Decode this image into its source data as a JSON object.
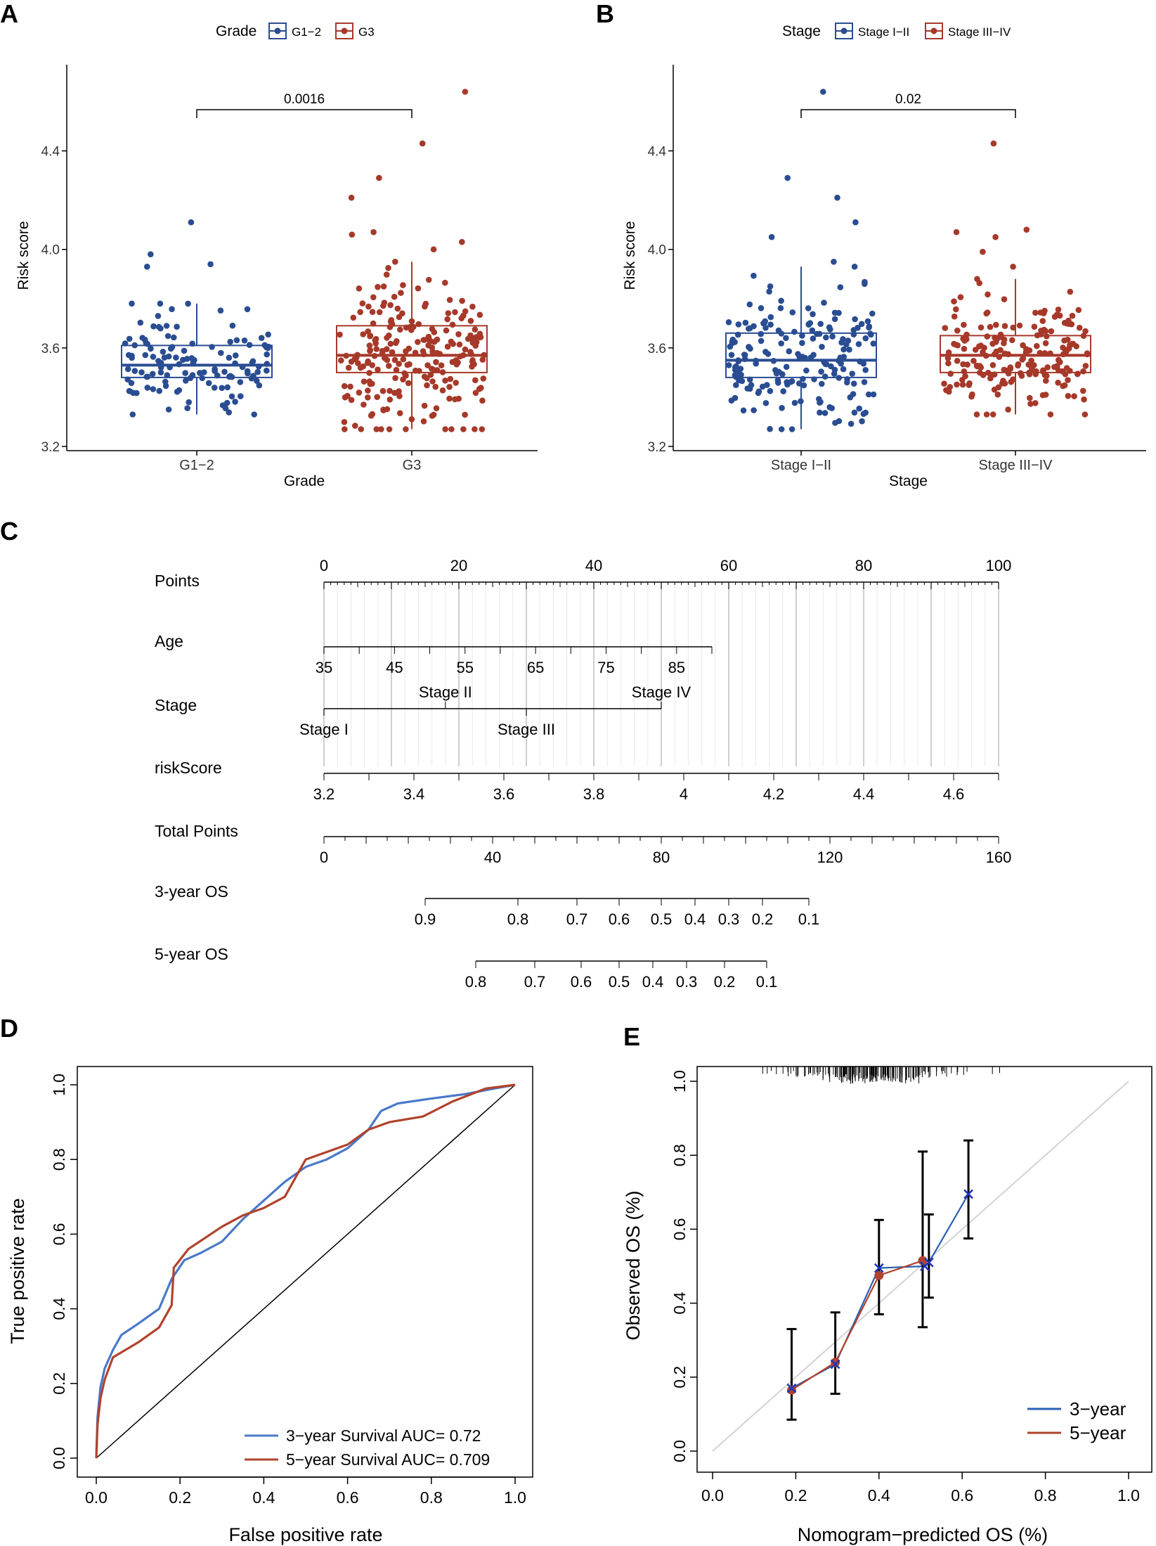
{
  "colors": {
    "blue": "#2a4d92",
    "red": "#a6392a",
    "ink": "#000000",
    "grid": "#cccccc",
    "roc_blue": "#4a79c8",
    "roc_red": "#b0432c"
  },
  "panels": {
    "A": "A",
    "B": "B",
    "C": "C",
    "D": "D",
    "E": "E"
  },
  "chart_data": [
    {
      "id": "A",
      "type": "box",
      "legend_title": "Grade",
      "legend": [
        "G1−2",
        "G3"
      ],
      "categories": [
        "G1−2",
        "G3"
      ],
      "xlabel": "Grade",
      "ylabel": "Risk score",
      "ylim": [
        3.2,
        4.75
      ],
      "yticks": [
        3.2,
        3.6,
        4.0,
        4.4
      ],
      "pvalue": "0.0016",
      "boxes": [
        {
          "q1": 3.48,
          "median": 3.53,
          "q3": 3.61,
          "whisker_low": 3.33,
          "whisker_high": 3.78,
          "n": 130
        },
        {
          "q1": 3.5,
          "median": 3.57,
          "q3": 3.69,
          "whisker_low": 3.27,
          "whisker_high": 3.95,
          "n": 230
        }
      ],
      "outliers": [
        {
          "group": 0,
          "y": 4.11
        },
        {
          "group": 0,
          "y": 3.98
        },
        {
          "group": 0,
          "y": 3.94
        },
        {
          "group": 0,
          "y": 3.93
        },
        {
          "group": 1,
          "y": 4.64
        },
        {
          "group": 1,
          "y": 4.43
        },
        {
          "group": 1,
          "y": 4.29
        },
        {
          "group": 1,
          "y": 4.21
        },
        {
          "group": 1,
          "y": 4.07
        },
        {
          "group": 1,
          "y": 4.06
        },
        {
          "group": 1,
          "y": 4.03
        },
        {
          "group": 1,
          "y": 4.0
        }
      ]
    },
    {
      "id": "B",
      "type": "box",
      "legend_title": "Stage",
      "legend": [
        "Stage I−II",
        "Stage III−IV"
      ],
      "categories": [
        "Stage I−II",
        "Stage III−IV"
      ],
      "xlabel": "Stage",
      "ylabel": "Risk score",
      "ylim": [
        3.2,
        4.75
      ],
      "yticks": [
        3.2,
        3.6,
        4.0,
        4.4
      ],
      "pvalue": "0.02",
      "boxes": [
        {
          "q1": 3.48,
          "median": 3.55,
          "q3": 3.66,
          "whisker_low": 3.27,
          "whisker_high": 3.93,
          "n": 190
        },
        {
          "q1": 3.5,
          "median": 3.57,
          "q3": 3.65,
          "whisker_low": 3.33,
          "whisker_high": 3.88,
          "n": 200
        }
      ],
      "outliers": [
        {
          "group": 0,
          "y": 4.64
        },
        {
          "group": 0,
          "y": 4.29
        },
        {
          "group": 0,
          "y": 4.21
        },
        {
          "group": 0,
          "y": 4.11
        },
        {
          "group": 0,
          "y": 4.05
        },
        {
          "group": 0,
          "y": 3.95
        },
        {
          "group": 1,
          "y": 4.43
        },
        {
          "group": 1,
          "y": 4.08
        },
        {
          "group": 1,
          "y": 4.07
        },
        {
          "group": 1,
          "y": 4.05
        },
        {
          "group": 1,
          "y": 3.99
        },
        {
          "group": 1,
          "y": 3.93
        }
      ]
    },
    {
      "id": "C",
      "type": "nomogram",
      "rows": [
        {
          "label": "Points",
          "ticks": [
            0,
            10,
            20,
            30,
            40,
            50,
            60,
            70,
            80,
            90,
            100
          ],
          "labels": [
            "0",
            "20",
            "40",
            "60",
            "80",
            "100"
          ],
          "label_vals": [
            0,
            20,
            40,
            60,
            80,
            100
          ],
          "span": [
            0,
            100
          ],
          "labels_above": true
        },
        {
          "label": "Age",
          "ticks": [
            35,
            40,
            45,
            50,
            55,
            60,
            65,
            70,
            75,
            80,
            85,
            90
          ],
          "labels": [
            "35",
            "45",
            "55",
            "65",
            "75",
            "85"
          ],
          "label_vals": [
            35,
            45,
            55,
            65,
            75,
            85
          ],
          "span": [
            35,
            90
          ],
          "pts": [
            0,
            57.5
          ]
        },
        {
          "label": "Stage",
          "levels": [
            "Stage I",
            "Stage II",
            "Stage III",
            "Stage IV"
          ],
          "level_points": [
            0,
            18,
            30,
            50
          ],
          "above": [
            false,
            true,
            false,
            true
          ]
        },
        {
          "label": "riskScore",
          "ticks": [
            3.2,
            3.3,
            3.4,
            3.5,
            3.6,
            3.7,
            3.8,
            3.9,
            4.0,
            4.1,
            4.2,
            4.3,
            4.4,
            4.5,
            4.6,
            4.7
          ],
          "labels": [
            "3.2",
            "3.4",
            "3.6",
            "3.8",
            "4",
            "4.2",
            "4.4",
            "4.6"
          ],
          "label_vals": [
            3.2,
            3.4,
            3.6,
            3.8,
            4.0,
            4.2,
            4.4,
            4.6
          ],
          "span": [
            3.2,
            4.7
          ],
          "pts": [
            0,
            100
          ]
        },
        {
          "label": "Total Points",
          "ticks": [
            0,
            10,
            20,
            30,
            40,
            50,
            60,
            70,
            80,
            90,
            100,
            110,
            120,
            130,
            140,
            150,
            160
          ],
          "labels": [
            "0",
            "40",
            "80",
            "120",
            "160"
          ],
          "label_vals": [
            0,
            40,
            80,
            120,
            160
          ],
          "span": [
            0,
            160
          ],
          "total": true
        },
        {
          "label": "3-year OS",
          "survival": [
            0.9,
            0.8,
            0.7,
            0.6,
            0.5,
            0.4,
            0.3,
            0.2,
            0.1
          ],
          "labels": [
            "0.9",
            "0.8",
            "0.7",
            "0.6",
            "0.5",
            "0.4",
            "0.3",
            "0.2",
            "0.1"
          ],
          "total_points": [
            24,
            46,
            60,
            70,
            80,
            88,
            96,
            104,
            115
          ]
        },
        {
          "label": "5-year OS",
          "survival": [
            0.8,
            0.7,
            0.6,
            0.5,
            0.4,
            0.3,
            0.2,
            0.1
          ],
          "labels": [
            "0.8",
            "0.7",
            "0.6",
            "0.5",
            "0.4",
            "0.3",
            "0.2",
            "0.1"
          ],
          "total_points": [
            36,
            50,
            61,
            70,
            78,
            86,
            95,
            105
          ]
        }
      ]
    },
    {
      "id": "D",
      "type": "line",
      "xlabel": "False positive rate",
      "ylabel": "True positive rate",
      "xlim": [
        0,
        1
      ],
      "ylim": [
        0,
        1
      ],
      "ticks": [
        0.0,
        0.2,
        0.4,
        0.6,
        0.8,
        1.0
      ],
      "tick_labels": [
        "0.0",
        "0.2",
        "0.4",
        "0.6",
        "0.8",
        "1.0"
      ],
      "series": [
        {
          "name": "3−year Survival AUC= 0.72",
          "color": "#4a79c8",
          "x": [
            0,
            0.003,
            0.01,
            0.02,
            0.04,
            0.06,
            0.1,
            0.15,
            0.18,
            0.21,
            0.25,
            0.3,
            0.35,
            0.4,
            0.45,
            0.5,
            0.55,
            0.6,
            0.65,
            0.68,
            0.72,
            0.8,
            0.88,
            0.95,
            1.0
          ],
          "y": [
            0,
            0.11,
            0.19,
            0.24,
            0.29,
            0.33,
            0.36,
            0.4,
            0.48,
            0.53,
            0.55,
            0.58,
            0.64,
            0.69,
            0.74,
            0.78,
            0.8,
            0.83,
            0.88,
            0.93,
            0.95,
            0.963,
            0.975,
            0.99,
            1.0
          ]
        },
        {
          "name": "5−year Survival AUC= 0.709",
          "color": "#b0432c",
          "x": [
            0,
            0.003,
            0.01,
            0.02,
            0.04,
            0.07,
            0.1,
            0.15,
            0.18,
            0.185,
            0.22,
            0.26,
            0.3,
            0.35,
            0.4,
            0.45,
            0.5,
            0.55,
            0.6,
            0.65,
            0.7,
            0.78,
            0.85,
            0.93,
            1.0
          ],
          "y": [
            0,
            0.09,
            0.16,
            0.21,
            0.27,
            0.29,
            0.31,
            0.35,
            0.41,
            0.51,
            0.56,
            0.59,
            0.62,
            0.65,
            0.67,
            0.7,
            0.8,
            0.82,
            0.84,
            0.88,
            0.9,
            0.915,
            0.955,
            0.99,
            1.0
          ]
        }
      ],
      "legend": [
        "3−year Survival AUC= 0.72",
        "5−year Survival AUC= 0.709"
      ]
    },
    {
      "id": "E",
      "type": "calibration",
      "xlabel": "Nomogram−predicted OS (%)",
      "ylabel": "Observed OS (%)",
      "xlim": [
        0,
        1
      ],
      "ylim": [
        0,
        1
      ],
      "ticks": [
        0.0,
        0.2,
        0.4,
        0.6,
        0.8,
        1.0
      ],
      "tick_labels": [
        "0.0",
        "0.2",
        "0.4",
        "0.6",
        "0.8",
        "1.0"
      ],
      "series": [
        {
          "name": "3−year",
          "color": "#2a5fb4",
          "x": [
            0.19,
            0.295,
            0.4,
            0.51,
            0.52,
            0.615
          ],
          "y": [
            0.17,
            0.235,
            0.495,
            0.5,
            0.51,
            0.695
          ],
          "err_low": [
            null,
            null,
            0.37,
            null,
            0.415,
            0.575
          ],
          "err_high": [
            null,
            null,
            0.625,
            null,
            0.64,
            0.84
          ]
        },
        {
          "name": "5−year",
          "color": "#b0432c",
          "x": [
            0.19,
            0.295,
            0.4,
            0.505
          ],
          "y": [
            0.165,
            0.24,
            0.475,
            0.515
          ],
          "err_low": [
            0.085,
            0.155,
            null,
            0.335
          ],
          "err_high": [
            0.33,
            0.375,
            null,
            0.81
          ]
        }
      ],
      "legend": [
        "3−year",
        "5−year"
      ]
    }
  ]
}
